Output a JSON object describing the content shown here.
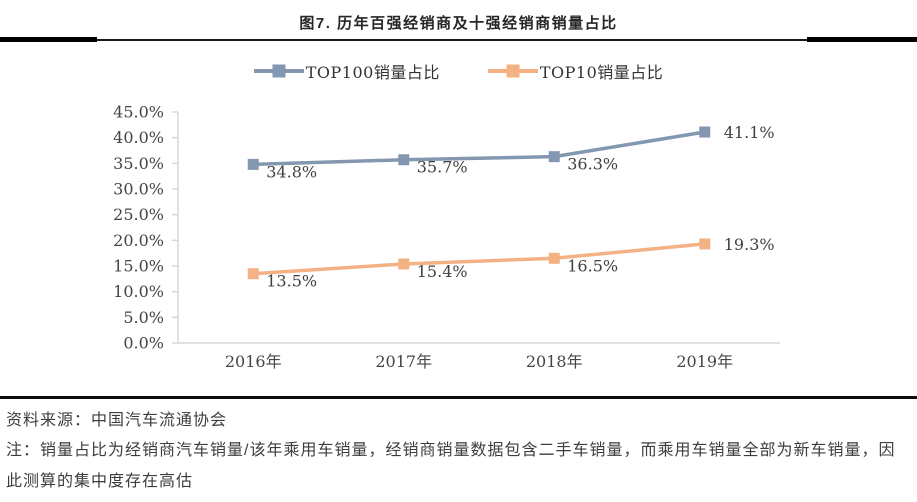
{
  "title": "图7. 历年百强经销商及十强经销商销量占比",
  "chart_data": {
    "type": "line",
    "title": "图7. 历年百强经销商及十强经销商销量占比",
    "categories": [
      "2016年",
      "2017年",
      "2018年",
      "2019年"
    ],
    "series": [
      {
        "name": "TOP100销量占比",
        "color": "#8497B0",
        "values": [
          34.8,
          35.7,
          36.3,
          41.1
        ],
        "labels": [
          "34.8%",
          "35.7%",
          "36.3%",
          "41.1%"
        ]
      },
      {
        "name": "TOP10销量占比",
        "color": "#F4B183",
        "values": [
          13.5,
          15.4,
          16.5,
          19.3
        ],
        "labels": [
          "13.5%",
          "15.4%",
          "16.5%",
          "19.3%"
        ]
      }
    ],
    "ylim": [
      0,
      45
    ],
    "ytick_step": 5,
    "yticks": [
      "0.0%",
      "5.0%",
      "10.0%",
      "15.0%",
      "20.0%",
      "25.0%",
      "30.0%",
      "35.0%",
      "40.0%",
      "45.0%"
    ],
    "xlabel": "",
    "ylabel": "",
    "grid": false,
    "legend_position": "top",
    "axis_color": "#D6D6D6",
    "tick_label_color": "#454545",
    "data_label_color": "#404040"
  },
  "footer": {
    "source": "资料来源：中国汽车流通协会",
    "note": "注：销量占比为经销商汽车销量/该年乘用车销量，经销商销量数据包含二手车销量，而乘用车销量全部为新车销量，因此测算的集中度存在高估"
  }
}
